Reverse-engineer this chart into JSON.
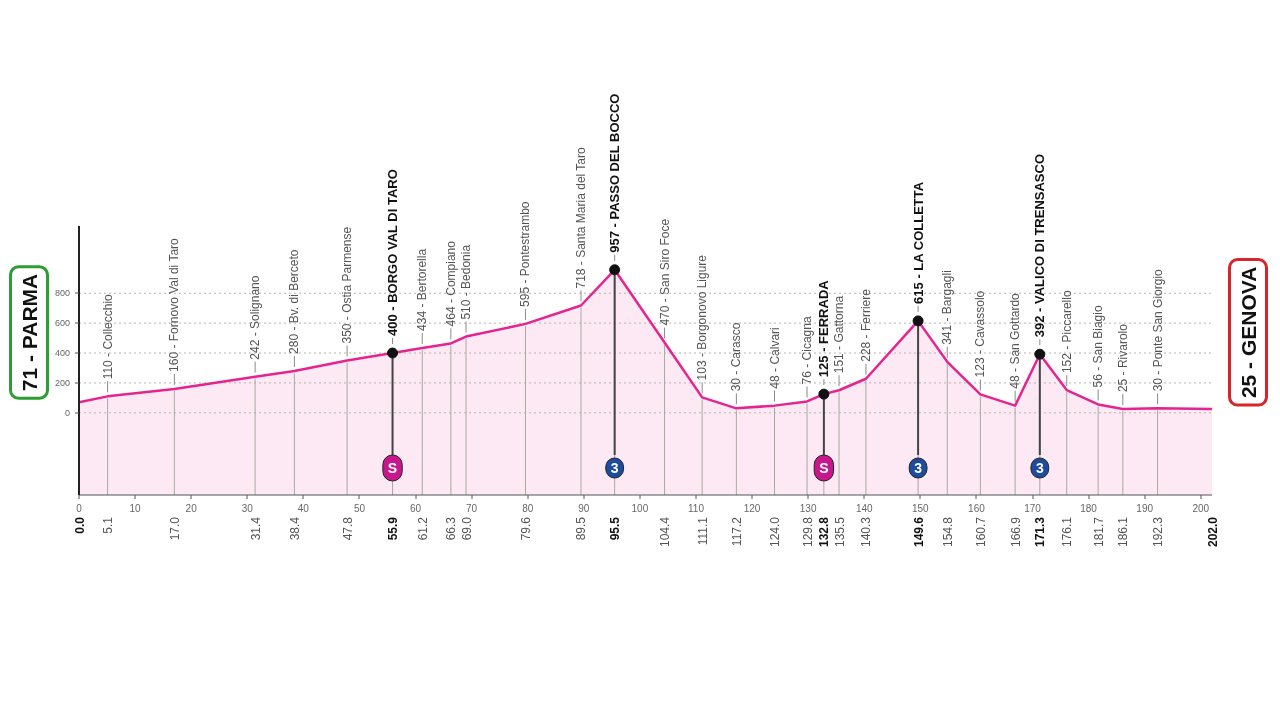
{
  "chart_data": {
    "type": "area",
    "xlim": [
      0,
      202
    ],
    "xticks": [
      0,
      10,
      20,
      30,
      40,
      50,
      60,
      70,
      80,
      90,
      100,
      110,
      120,
      130,
      140,
      150,
      160,
      170,
      180,
      190,
      200
    ],
    "ylim": [
      -550,
      1250
    ],
    "yticks": [
      0,
      200,
      400,
      600,
      800
    ],
    "x2lim": [
      0,
      202
    ],
    "x2ticks": [
      {
        "value": 0.0,
        "label": "0.0"
      },
      {
        "value": 5.1,
        "label": "5.1"
      },
      {
        "value": 17.0,
        "label": "17.0"
      },
      {
        "value": 31.4,
        "label": "31.4"
      },
      {
        "value": 38.4,
        "label": "38.4"
      },
      {
        "value": 47.8,
        "label": "47.8"
      },
      {
        "value": 55.9,
        "label": "55.9"
      },
      {
        "value": 61.2,
        "label": "61.2"
      },
      {
        "value": 66.3,
        "label": "66.3"
      },
      {
        "value": 69.0,
        "label": "69.0"
      },
      {
        "value": 79.6,
        "label": "79.6"
      },
      {
        "value": 89.5,
        "label": "89.5"
      },
      {
        "value": 95.5,
        "label": "95.5"
      },
      {
        "value": 104.4,
        "label": "104.4"
      },
      {
        "value": 111.1,
        "label": "111.1"
      },
      {
        "value": 117.2,
        "label": "117.2"
      },
      {
        "value": 124.0,
        "label": "124.0"
      },
      {
        "value": 129.8,
        "label": "129.8"
      },
      {
        "value": 132.8,
        "label": "132.8"
      },
      {
        "value": 135.5,
        "label": "135.5"
      },
      {
        "value": 140.3,
        "label": "140.3"
      },
      {
        "value": 149.6,
        "label": "149.6"
      },
      {
        "value": 154.8,
        "label": "154.8"
      },
      {
        "value": 160.7,
        "label": "160.7"
      },
      {
        "value": 166.9,
        "label": "166.9"
      },
      {
        "value": 171.3,
        "label": "171.3"
      },
      {
        "value": 176.1,
        "label": "176.1"
      },
      {
        "value": 181.7,
        "label": "181.7"
      },
      {
        "value": 186.1,
        "label": "186.1"
      },
      {
        "value": 192.3,
        "label": "192.3"
      },
      {
        "value": 202.0,
        "label": "202.0"
      }
    ],
    "grid": "y",
    "series": [
      {
        "color": "#e5258f",
        "x": [
          0.0,
          5.1,
          17.0,
          31.4,
          38.4,
          47.8,
          55.9,
          61.2,
          66.3,
          69.0,
          79.6,
          89.5,
          95.5,
          104.4,
          111.1,
          117.2,
          124.0,
          129.8,
          132.8,
          135.5,
          140.3,
          149.6,
          154.8,
          160.7,
          166.9,
          171.3,
          176.1,
          181.7,
          186.1,
          192.3,
          202.0
        ],
        "values": [
          71,
          110,
          160,
          242,
          280,
          350,
          400,
          434,
          464,
          510,
          595,
          718,
          957,
          470,
          103,
          30,
          48,
          76,
          125,
          151,
          228,
          615,
          341,
          123,
          48,
          392,
          152,
          56,
          25,
          30,
          25
        ]
      },
      {
        "type": "scatter",
        "color": "#111111",
        "marker": "circle",
        "x": [
          55.9,
          132.8
        ],
        "values": [
          400,
          125
        ]
      },
      {
        "type": "scatter",
        "color": "#111111",
        "marker": "circle",
        "x": [
          95.5,
          149.6,
          171.3
        ],
        "values": [
          957,
          615,
          392
        ]
      }
    ],
    "bands": [
      {
        "axis": "y",
        "from": -550,
        "to": 0,
        "color": "#e5258f"
      }
    ],
    "ref_lines": [
      {
        "axis": "x",
        "value": 5.1
      },
      {
        "axis": "x",
        "value": 17.0
      },
      {
        "axis": "x",
        "value": 31.4
      },
      {
        "axis": "x",
        "value": 38.4
      },
      {
        "axis": "x",
        "value": 47.8
      },
      {
        "axis": "x",
        "value": 55.9
      },
      {
        "axis": "x",
        "value": 61.2
      },
      {
        "axis": "x",
        "value": 66.3
      },
      {
        "axis": "x",
        "value": 69.0
      },
      {
        "axis": "x",
        "value": 79.6
      },
      {
        "axis": "x",
        "value": 89.5
      },
      {
        "axis": "x",
        "value": 95.5
      },
      {
        "axis": "x",
        "value": 104.4
      },
      {
        "axis": "x",
        "value": 111.1
      },
      {
        "axis": "x",
        "value": 117.2
      },
      {
        "axis": "x",
        "value": 124.0
      },
      {
        "axis": "x",
        "value": 129.8
      },
      {
        "axis": "x",
        "value": 132.8
      },
      {
        "axis": "x",
        "value": 135.5
      },
      {
        "axis": "x",
        "value": 140.3
      },
      {
        "axis": "x",
        "value": 149.6
      },
      {
        "axis": "x",
        "value": 154.8
      },
      {
        "axis": "x",
        "value": 160.7
      },
      {
        "axis": "x",
        "value": 166.9
      },
      {
        "axis": "x",
        "value": 171.3
      },
      {
        "axis": "x",
        "value": 176.1
      },
      {
        "axis": "x",
        "value": 181.7
      },
      {
        "axis": "x",
        "value": 186.1
      },
      {
        "axis": "x",
        "value": 192.3
      }
    ],
    "annotations": [
      {
        "text": "71 - PARMA",
        "x": 0.0,
        "y": 71
      },
      {
        "text": "110 - Collecchio",
        "x": 5.1,
        "y": 110
      },
      {
        "text": "160 - Fornovo Val di Taro",
        "x": 17.0,
        "y": 160
      },
      {
        "text": "242 - Solignano",
        "x": 31.4,
        "y": 242
      },
      {
        "text": "280 - Bv. di Berceto",
        "x": 38.4,
        "y": 280
      },
      {
        "text": "350 - Ostia Parmense",
        "x": 47.8,
        "y": 350
      },
      {
        "text": "400 - BORGO VAL DI TARO",
        "x": 55.9,
        "y": 400
      },
      {
        "text": "434 - Bertorella",
        "x": 61.2,
        "y": 434
      },
      {
        "text": "464 - Compiano",
        "x": 66.3,
        "y": 464
      },
      {
        "text": "510 - Bedonia",
        "x": 69.0,
        "y": 510
      },
      {
        "text": "595 - Pontestrambo",
        "x": 79.6,
        "y": 595
      },
      {
        "text": "718 - Santa Maria del Taro",
        "x": 89.5,
        "y": 718
      },
      {
        "text": "957 - PASSO DEL BOCCO",
        "x": 95.5,
        "y": 957
      },
      {
        "text": "470 - San Siro Foce",
        "x": 104.4,
        "y": 470
      },
      {
        "text": "103 - Borgonovo Ligure",
        "x": 111.1,
        "y": 103
      },
      {
        "text": "30 - Carasco",
        "x": 117.2,
        "y": 30
      },
      {
        "text": "48 - Calvari",
        "x": 124.0,
        "y": 48
      },
      {
        "text": "76 - Cicagna",
        "x": 129.8,
        "y": 76
      },
      {
        "text": "125 - FERRADA",
        "x": 132.8,
        "y": 125
      },
      {
        "text": "151 - Gattorna",
        "x": 135.5,
        "y": 151
      },
      {
        "text": "228 - Ferriere",
        "x": 140.3,
        "y": 228
      },
      {
        "text": "615 - LA COLLETTA",
        "x": 149.6,
        "y": 615
      },
      {
        "text": "341 - Bargagli",
        "x": 154.8,
        "y": 341
      },
      {
        "text": "123 - Cavassolo",
        "x": 160.7,
        "y": 123
      },
      {
        "text": "48 - San Gottardo",
        "x": 166.9,
        "y": 48
      },
      {
        "text": "392 - VALICO DI TRENSASCO",
        "x": 171.3,
        "y": 392
      },
      {
        "text": "152 - Piccarello",
        "x": 176.1,
        "y": 152
      },
      {
        "text": "56 - San Biagio",
        "x": 181.7,
        "y": 56
      },
      {
        "text": "25 - Rivarolo",
        "x": 186.1,
        "y": 25
      },
      {
        "text": "30 - Ponte San Giorgio",
        "x": 192.3,
        "y": 30
      },
      {
        "text": "25 - GENOVA",
        "x": 202.0,
        "y": 25
      },
      {
        "text": "S",
        "x": 55.9,
        "y": 400
      },
      {
        "text": "3",
        "x": 95.5,
        "y": 957
      },
      {
        "text": "S",
        "x": 132.8,
        "y": 125
      },
      {
        "text": "3",
        "x": 149.6,
        "y": 615
      },
      {
        "text": "3",
        "x": 171.3,
        "y": 392
      }
    ]
  }
}
